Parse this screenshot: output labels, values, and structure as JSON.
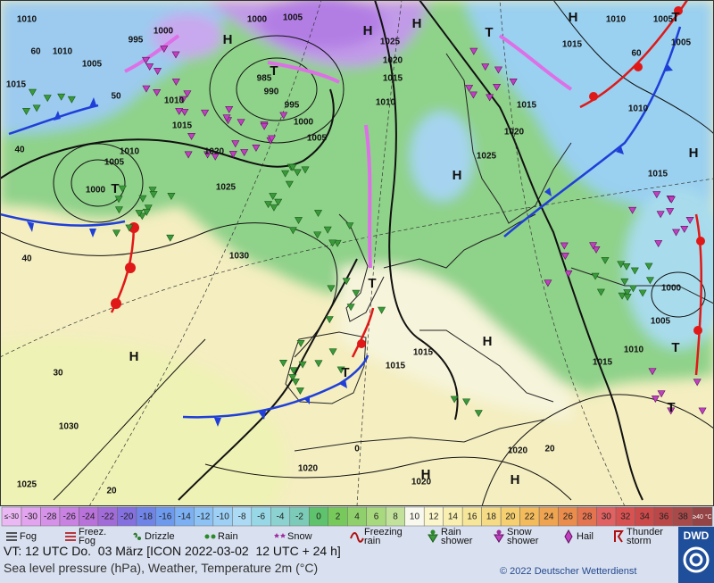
{
  "map": {
    "pressure_labels": [
      1010,
      1000,
      1005,
      1000,
      1010,
      995,
      1005,
      1015,
      985,
      990,
      995,
      1000,
      1010,
      1015,
      1005,
      1020,
      1010,
      1005,
      1000,
      1025,
      1030,
      1025,
      1020,
      1015,
      1010,
      1020,
      1025,
      1015,
      1015,
      1010,
      1005,
      1005,
      1010,
      1015,
      1000,
      1005,
      1010,
      1015,
      1015,
      1015,
      1030,
      1025,
      1020,
      1020,
      1020
    ],
    "temperature_labels": [
      60,
      50,
      40,
      40,
      30,
      20,
      0,
      20,
      60
    ],
    "high_labels": [
      "H",
      "H",
      "H",
      "H",
      "H",
      "H",
      "H",
      "H",
      "H",
      "H"
    ],
    "low_labels": [
      "T",
      "T",
      "T",
      "T",
      "T",
      "T",
      "T",
      "T"
    ]
  },
  "temperature_scale": {
    "low_end": "≤-30",
    "high_end": "≥40 °C",
    "values": [
      -30,
      -28,
      -26,
      -24,
      -22,
      -20,
      -18,
      -16,
      -14,
      -12,
      -10,
      -8,
      -6,
      -4,
      -2,
      0,
      2,
      4,
      6,
      8,
      10,
      12,
      14,
      16,
      18,
      20,
      22,
      24,
      26,
      28,
      30,
      32,
      34,
      36,
      38
    ],
    "colors": [
      "#e2a4ee",
      "#d692e8",
      "#c982e2",
      "#b872da",
      "#a26cd8",
      "#8470de",
      "#6f84e6",
      "#6e9aee",
      "#7cb0f2",
      "#8dc2f4",
      "#9ed0f5",
      "#acdaf4",
      "#98d8e6",
      "#8cd2d0",
      "#7ccbb8",
      "#5fc26c",
      "#78c95c",
      "#90d06c",
      "#a8d97e",
      "#c2e29c",
      "#f8f8ee",
      "#fbf6cc",
      "#f8efb0",
      "#f6e69a",
      "#f5db86",
      "#f5cf70",
      "#f3bb5c",
      "#eea450",
      "#e98c4c",
      "#e47450",
      "#e06262",
      "#d85252",
      "#cc4a4a",
      "#bb4848",
      "#a84a4a"
    ],
    "low_end_color": "#eab8f2",
    "high_end_color": "#944444"
  },
  "weather_legend": [
    "Fog",
    "Freez. Fog",
    "Drizzle",
    "Rain",
    "Snow",
    "Freezing rain",
    "Rain shower",
    "Snow shower",
    "Hail",
    "Thunder storm"
  ],
  "footer": {
    "valid_time": "VT: 12 UTC Do.  03 März [ICON 2022-03-02  12 UTC + 24 h]",
    "description": "Sea level pressure (hPa), Weather, Temperature 2m (°C)",
    "copyright": "© 2022 Deutscher Wetterdienst",
    "logo": "DWD"
  }
}
